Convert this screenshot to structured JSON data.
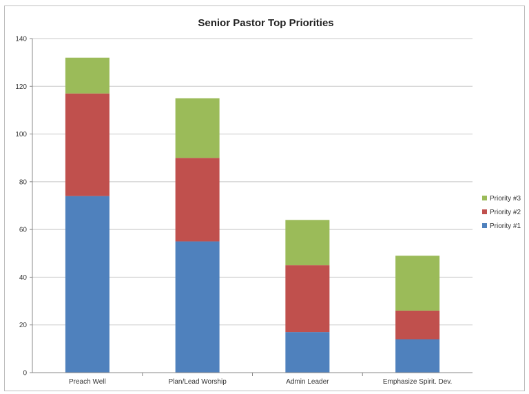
{
  "chart_data": {
    "type": "bar",
    "stacked": true,
    "title": "Senior Pastor Top Priorities",
    "xlabel": "",
    "ylabel": "",
    "ylim": [
      0,
      140
    ],
    "yticks": [
      0,
      20,
      40,
      60,
      80,
      100,
      120,
      140
    ],
    "grid": true,
    "legend_position": "right",
    "categories": [
      "Preach Well",
      "Plan/Lead Worship",
      "Admin Leader",
      "Emphasize Spirit. Dev."
    ],
    "series": [
      {
        "name": "Priority #1",
        "color": "#4f81bd",
        "values": [
          74,
          55,
          17,
          14
        ]
      },
      {
        "name": "Priority #2",
        "color": "#c0504d",
        "values": [
          43,
          35,
          28,
          12
        ]
      },
      {
        "name": "Priority #3",
        "color": "#9bbb59",
        "values": [
          15,
          25,
          19,
          23
        ]
      }
    ]
  }
}
